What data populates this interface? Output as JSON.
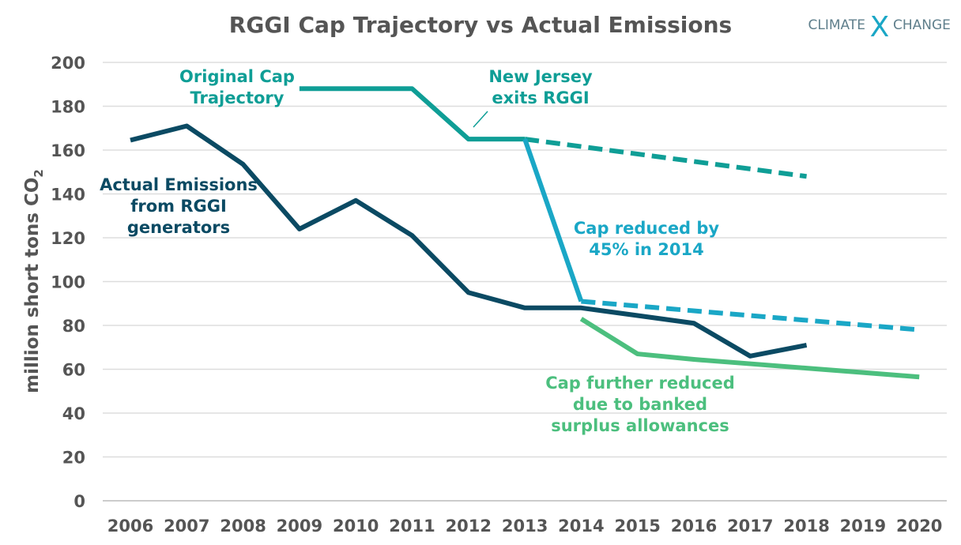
{
  "chart_data": {
    "type": "line",
    "title": "RGGI Cap Trajectory vs Actual Emissions",
    "ylabel": "million short tons CO",
    "ylabel_subscript": "2",
    "ylim": [
      0,
      200
    ],
    "yticks": [
      0,
      20,
      40,
      60,
      80,
      100,
      120,
      140,
      160,
      180,
      200
    ],
    "xticks": [
      2006,
      2007,
      2008,
      2009,
      2010,
      2011,
      2012,
      2013,
      2014,
      2015,
      2016,
      2017,
      2018,
      2019,
      2020
    ],
    "grid": true,
    "series": [
      {
        "key": "actual",
        "color": "#0b4a63",
        "dash": false,
        "x": [
          2006,
          2007,
          2008,
          2009,
          2010,
          2011,
          2012,
          2013,
          2014,
          2015,
          2016,
          2017,
          2018
        ],
        "y": [
          164.5,
          171,
          153.5,
          124,
          137,
          121,
          95,
          88,
          88,
          84.5,
          81,
          66,
          71
        ]
      },
      {
        "key": "original",
        "color": "#0f9e96",
        "dash": false,
        "x": [
          2009,
          2011,
          2012,
          2013
        ],
        "y": [
          188,
          188,
          165,
          165
        ]
      },
      {
        "key": "original_projected",
        "color": "#0f9e96",
        "dash": true,
        "x": [
          2013,
          2018
        ],
        "y": [
          165,
          148
        ]
      },
      {
        "key": "reduced",
        "color": "#1aa7c6",
        "dash": false,
        "x": [
          2013,
          2014
        ],
        "y": [
          165,
          91
        ]
      },
      {
        "key": "reduced_projected",
        "color": "#1aa7c6",
        "dash": true,
        "x": [
          2014,
          2020
        ],
        "y": [
          91,
          78
        ]
      },
      {
        "key": "further",
        "color": "#4cbf7e",
        "dash": false,
        "x": [
          2014,
          2015,
          2016,
          2017,
          2018,
          2019,
          2020
        ],
        "y": [
          83,
          67,
          64.5,
          62.5,
          60.5,
          58.5,
          56.5
        ]
      }
    ],
    "annotations": {
      "original": [
        "Original Cap",
        "Trajectory"
      ],
      "nj": [
        "New Jersey",
        "exits RGGI"
      ],
      "actual": [
        "Actual Emissions",
        "from RGGI",
        "generators"
      ],
      "reduced": [
        "Cap reduced by",
        "45% in 2014"
      ],
      "further": [
        "Cap further reduced",
        "due to banked",
        "surplus allowances"
      ]
    }
  },
  "logo": {
    "left": "CLIMATE",
    "mid": "X",
    "right": "CHANGE"
  },
  "colors": {
    "text": "#555555",
    "grid": "#dddddd",
    "logo_text": "#5f7f8c",
    "logo_x": "#1aa7c6"
  }
}
